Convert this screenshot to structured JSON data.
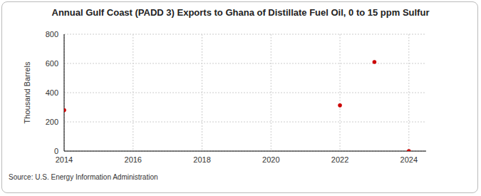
{
  "chart_data": {
    "type": "scatter",
    "title": "Annual Gulf Coast (PADD 3) Exports to Ghana of Distillate Fuel Oil, 0 to 15 ppm Sulfur",
    "y_label": "Thousand Barrels",
    "source": "Source: U.S. Energy Information Administration",
    "x": [
      2014,
      2022,
      2023,
      2024
    ],
    "values": [
      280,
      313,
      610,
      0
    ],
    "color": "#cc0000",
    "marker": "circle",
    "xlim": [
      2014,
      2024.5
    ],
    "xticks": [
      2014,
      2016,
      2018,
      2020,
      2022,
      2024
    ],
    "ylim": [
      0,
      800
    ],
    "yticks": [
      0,
      200,
      400,
      600,
      800
    ],
    "grid": true
  }
}
